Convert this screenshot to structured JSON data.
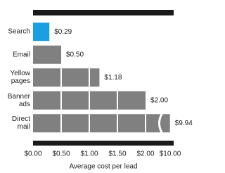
{
  "chart_data": {
    "type": "bar",
    "orientation": "horizontal",
    "categories": [
      "Search",
      "Email",
      "Yellow pages",
      "Banner ads",
      "Direct mail"
    ],
    "values": [
      0.29,
      0.5,
      1.18,
      2.0,
      9.94
    ],
    "value_labels": [
      "$0.29",
      "$0.50",
      "$1.18",
      "$2.00",
      "$9.94"
    ],
    "colors": [
      "#1a9fe0",
      "#808080",
      "#808080",
      "#808080",
      "#808080"
    ],
    "xlabel": "Average cost per lead",
    "xlim": [
      0,
      10
    ],
    "xticks": [
      {
        "value": 0,
        "label": "$0.00"
      },
      {
        "value": 0.5,
        "label": "$0.50"
      },
      {
        "value": 1,
        "label": "$1.00"
      },
      {
        "value": 1.5,
        "label": "$1.50"
      },
      {
        "value": 2,
        "label": "$2.00"
      },
      {
        "value": 10,
        "label": "$10.00"
      }
    ],
    "broken_axis": true
  }
}
